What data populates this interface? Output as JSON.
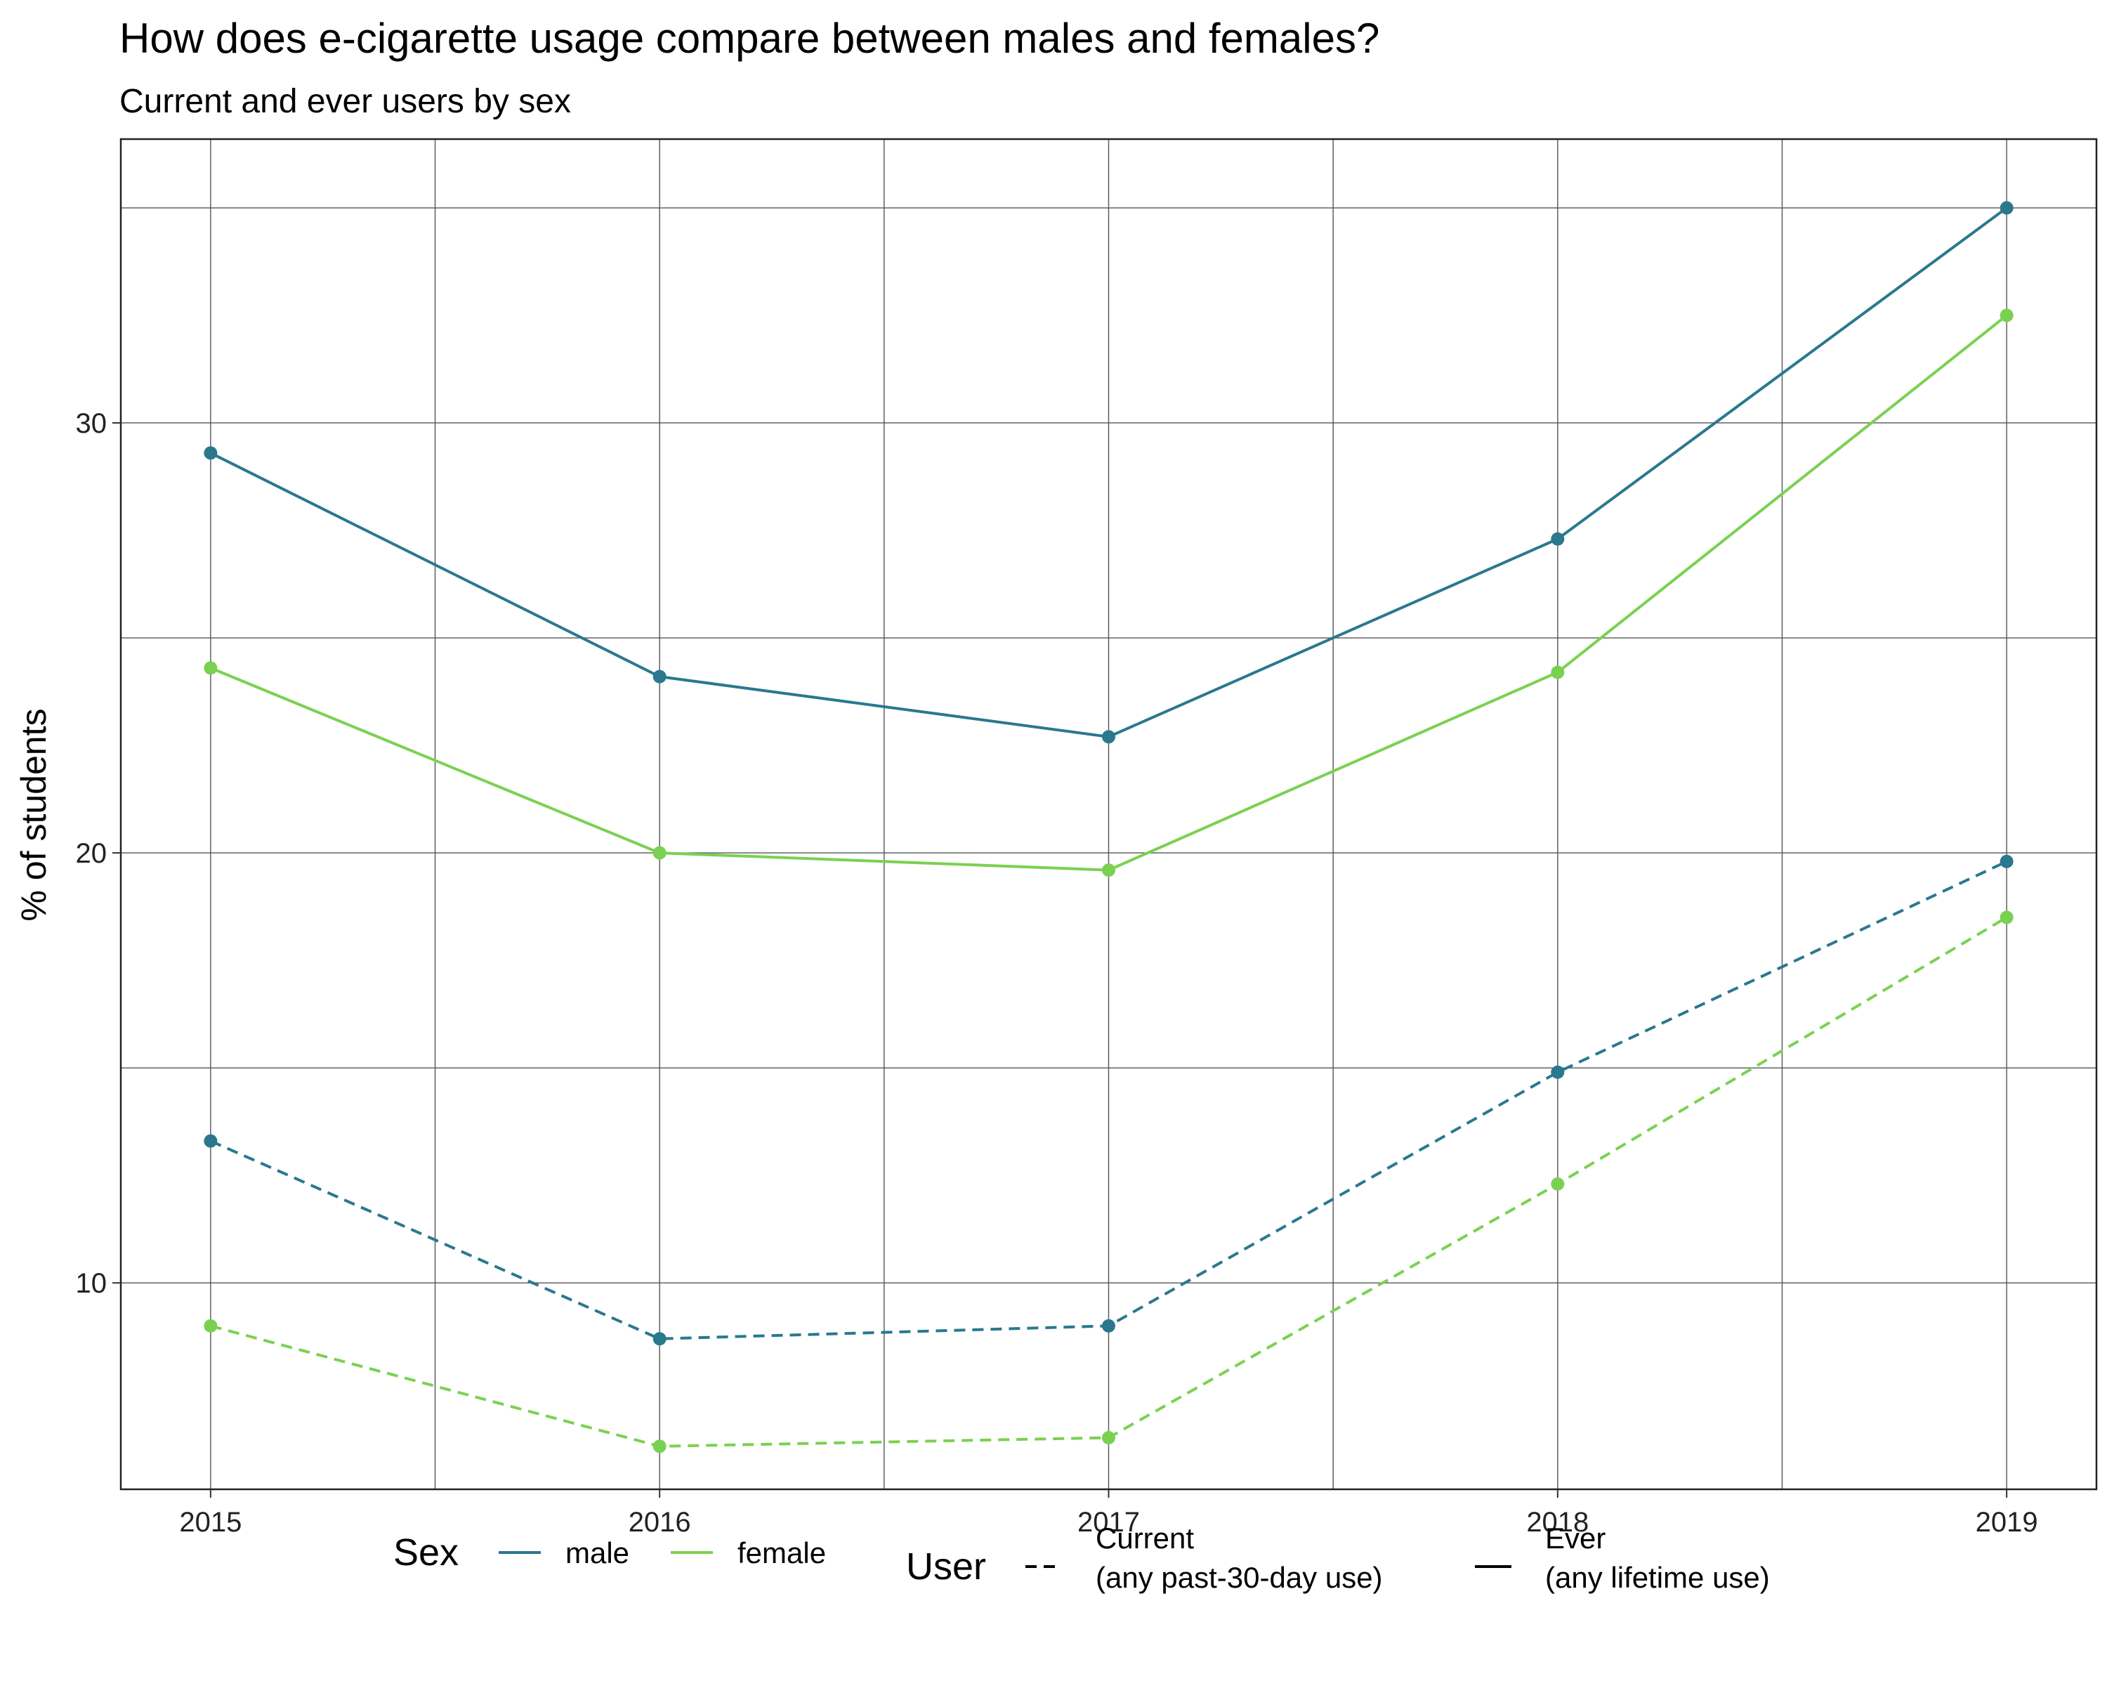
{
  "chart_data": {
    "type": "line",
    "title": "How does e-cigarette usage compare between males and females?",
    "subtitle": "Current and ever users by sex",
    "xlabel": "",
    "ylabel": "% of students",
    "x": [
      2015,
      2016,
      2017,
      2018,
      2019
    ],
    "xlim": [
      2014.8,
      2019.2
    ],
    "ylim": [
      5.2,
      36.6
    ],
    "yticks": [
      10,
      20,
      30
    ],
    "grid": true,
    "legend_position": "bottom",
    "series": [
      {
        "sex": "male",
        "user": "Ever",
        "values": [
          29.3,
          24.1,
          22.7,
          27.3,
          35.0
        ],
        "color": "#2a788e",
        "dash": false
      },
      {
        "sex": "female",
        "user": "Ever",
        "values": [
          24.3,
          20.0,
          19.6,
          24.2,
          32.5
        ],
        "color": "#7ad151",
        "dash": false
      },
      {
        "sex": "male",
        "user": "Current",
        "values": [
          13.3,
          8.7,
          9.0,
          14.9,
          19.8
        ],
        "color": "#2a788e",
        "dash": true
      },
      {
        "sex": "female",
        "user": "Current",
        "values": [
          9.0,
          6.2,
          6.4,
          12.3,
          18.5
        ],
        "color": "#7ad151",
        "dash": true
      }
    ],
    "legend": {
      "sex_title": "Sex",
      "sex_items": [
        {
          "label": "male",
          "color": "#2a788e"
        },
        {
          "label": "female",
          "color": "#7ad151"
        }
      ],
      "user_title": "User",
      "user_items": [
        {
          "line1": "Current",
          "line2": " (any past-30-day use)",
          "dash": true
        },
        {
          "line1": "Ever",
          "line2": " (any lifetime use)",
          "dash": false
        }
      ]
    }
  }
}
